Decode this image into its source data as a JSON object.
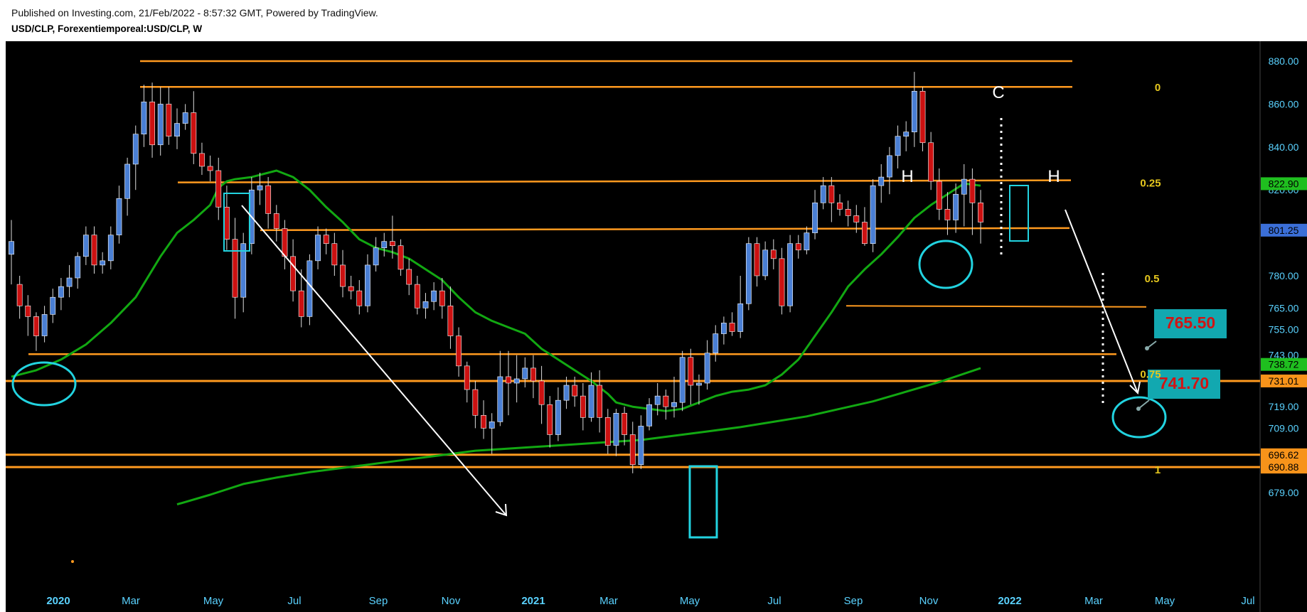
{
  "header": {
    "published": "Published on Investing.com, 21/Feb/2022 - 8:57:32 GMT, Powered by TradingView.",
    "symbol": "USD/CLP, Forexentiemporeal:USD/CLP, W"
  },
  "colors": {
    "background": "#000000",
    "up_candle": "#4a7fd4",
    "down_candle": "#cc1111",
    "levels": "#ff9a1f",
    "ma_line": "#12a812",
    "annotation": "#22d3e0",
    "fib_text": "#e6c81e",
    "axis_text": "#5ad2ff"
  },
  "chart_data": {
    "type": "candlestick",
    "timeframe": "W",
    "ylim": [
      675,
      888
    ],
    "y_ticks": [
      "880.00",
      "860.00",
      "840.00",
      "820.00",
      "801.25",
      "780.00",
      "765.00",
      "755.00",
      "743.00",
      "738.72",
      "731.01",
      "719.00",
      "709.00",
      "696.62",
      "690.88",
      "679.00"
    ],
    "x_ticks": [
      "2020",
      "Mar",
      "May",
      "Jul",
      "Sep",
      "Nov",
      "2021",
      "Mar",
      "May",
      "Jul",
      "Sep",
      "Nov",
      "2022",
      "Mar",
      "May",
      "Jul"
    ],
    "price_badges": [
      {
        "value": "822.90",
        "color": "#1fbf1f"
      },
      {
        "value": "801.25",
        "color": "#3b6fd8"
      },
      {
        "value": "738.72",
        "color": "#1fbf1f"
      },
      {
        "value": "731.01",
        "color": "#f7931a"
      },
      {
        "value": "696.62",
        "color": "#f7931a"
      },
      {
        "value": "690.88",
        "color": "#f7931a"
      }
    ],
    "horizontal_levels": [
      880,
      868,
      823.5,
      801.25,
      743.5,
      731.01,
      696.62,
      690.88
    ],
    "fibonacci": [
      {
        "label": "0",
        "value": 868
      },
      {
        "label": "0.25",
        "value": 823.5
      },
      {
        "label": "0.5",
        "value": 779
      },
      {
        "label": "0.75",
        "value": 734.5
      },
      {
        "label": "1",
        "value": 690
      }
    ],
    "targets": [
      "765.50",
      "741.70"
    ],
    "pattern_labels": [
      "H",
      "C",
      "H"
    ],
    "candles": [
      [
        0,
        790,
        796,
        776,
        806
      ],
      [
        1,
        776,
        766,
        760,
        780
      ],
      [
        2,
        766,
        761,
        752,
        771
      ],
      [
        3,
        761,
        752,
        745,
        763
      ],
      [
        4,
        752,
        762,
        749,
        766
      ],
      [
        5,
        762,
        770,
        758,
        774
      ],
      [
        6,
        770,
        775,
        764,
        779
      ],
      [
        7,
        775,
        779,
        770,
        785
      ],
      [
        8,
        779,
        789,
        774,
        791
      ],
      [
        9,
        789,
        799,
        785,
        803
      ],
      [
        10,
        799,
        785,
        781,
        803
      ],
      [
        11,
        785,
        787,
        781,
        791
      ],
      [
        12,
        787,
        799,
        783,
        803
      ],
      [
        13,
        799,
        816,
        795,
        822
      ],
      [
        14,
        816,
        832,
        808,
        835
      ],
      [
        15,
        832,
        846,
        820,
        850
      ],
      [
        16,
        846,
        861,
        840,
        869
      ],
      [
        17,
        861,
        841,
        835,
        870
      ],
      [
        18,
        841,
        860,
        836,
        868
      ],
      [
        19,
        860,
        845,
        841,
        868
      ],
      [
        20,
        845,
        851,
        839,
        858
      ],
      [
        21,
        851,
        856,
        848,
        860
      ],
      [
        22,
        856,
        837,
        832,
        866
      ],
      [
        23,
        837,
        831,
        827,
        842
      ],
      [
        24,
        831,
        829,
        824,
        836
      ],
      [
        25,
        829,
        812,
        806,
        835
      ],
      [
        26,
        812,
        797,
        792,
        822
      ],
      [
        27,
        797,
        770,
        760,
        807
      ],
      [
        28,
        770,
        795,
        763,
        800
      ],
      [
        29,
        795,
        820,
        790,
        826
      ],
      [
        30,
        820,
        822,
        813,
        828
      ],
      [
        31,
        822,
        809,
        802,
        826
      ],
      [
        32,
        809,
        802,
        796,
        813
      ],
      [
        33,
        802,
        789,
        783,
        806
      ],
      [
        34,
        789,
        773,
        768,
        797
      ],
      [
        35,
        773,
        761,
        756,
        783
      ],
      [
        36,
        761,
        787,
        757,
        790
      ],
      [
        37,
        787,
        799,
        783,
        803
      ],
      [
        38,
        799,
        795,
        790,
        802
      ],
      [
        39,
        795,
        785,
        780,
        800
      ],
      [
        40,
        785,
        775,
        770,
        792
      ],
      [
        41,
        775,
        773,
        769,
        780
      ],
      [
        42,
        773,
        766,
        762,
        778
      ],
      [
        43,
        766,
        785,
        763,
        790
      ],
      [
        44,
        785,
        793,
        782,
        798
      ],
      [
        45,
        793,
        796,
        789,
        800
      ],
      [
        46,
        796,
        794,
        788,
        808
      ],
      [
        47,
        794,
        783,
        780,
        797
      ],
      [
        48,
        783,
        776,
        771,
        788
      ],
      [
        49,
        776,
        765,
        762,
        780
      ],
      [
        50,
        765,
        768,
        760,
        772
      ],
      [
        51,
        768,
        773,
        764,
        777
      ],
      [
        52,
        773,
        766,
        760,
        779
      ],
      [
        53,
        766,
        752,
        746,
        775
      ],
      [
        54,
        752,
        738,
        733,
        756
      ],
      [
        55,
        738,
        727,
        721,
        740
      ],
      [
        56,
        727,
        715,
        709,
        731
      ],
      [
        57,
        715,
        709,
        704,
        722
      ],
      [
        58,
        709,
        712,
        697,
        716
      ],
      [
        59,
        712,
        733,
        710,
        745
      ],
      [
        60,
        733,
        730,
        715,
        745
      ],
      [
        61,
        730,
        732,
        721,
        743
      ],
      [
        62,
        732,
        737,
        728,
        742
      ],
      [
        63,
        737,
        731,
        723,
        743
      ],
      [
        64,
        731,
        720,
        711,
        738
      ],
      [
        65,
        720,
        706,
        700,
        724
      ],
      [
        66,
        706,
        722,
        703,
        728
      ],
      [
        67,
        722,
        729,
        718,
        733
      ],
      [
        68,
        729,
        724,
        719,
        733
      ],
      [
        69,
        724,
        714,
        708,
        730
      ],
      [
        70,
        714,
        729,
        712,
        735
      ],
      [
        71,
        729,
        714,
        707,
        736
      ],
      [
        72,
        714,
        701,
        697,
        718
      ],
      [
        73,
        701,
        716,
        696,
        718
      ],
      [
        74,
        716,
        706,
        701,
        719
      ],
      [
        75,
        706,
        692,
        688,
        712
      ],
      [
        76,
        692,
        710,
        690,
        715
      ],
      [
        77,
        710,
        720,
        708,
        723
      ],
      [
        78,
        720,
        724,
        715,
        730
      ],
      [
        79,
        724,
        719,
        713,
        727
      ],
      [
        80,
        719,
        721,
        714,
        733
      ],
      [
        81,
        721,
        742,
        717,
        745
      ],
      [
        82,
        742,
        729,
        720,
        746
      ],
      [
        83,
        729,
        730,
        720,
        734
      ],
      [
        84,
        730,
        744,
        727,
        750
      ],
      [
        85,
        744,
        753,
        740,
        757
      ],
      [
        86,
        753,
        758,
        748,
        761
      ],
      [
        87,
        758,
        754,
        752,
        763
      ],
      [
        88,
        754,
        767,
        751,
        780
      ],
      [
        89,
        767,
        795,
        764,
        798
      ],
      [
        90,
        795,
        780,
        775,
        798
      ],
      [
        91,
        780,
        792,
        778,
        796
      ],
      [
        92,
        792,
        788,
        783,
        797
      ],
      [
        93,
        788,
        766,
        762,
        793
      ],
      [
        94,
        766,
        795,
        763,
        799
      ],
      [
        95,
        795,
        792,
        788,
        799
      ],
      [
        96,
        792,
        800,
        790,
        803
      ],
      [
        97,
        800,
        814,
        797,
        820
      ],
      [
        98,
        814,
        822,
        811,
        826
      ],
      [
        99,
        822,
        814,
        805,
        826
      ],
      [
        100,
        814,
        811,
        808,
        818
      ],
      [
        101,
        811,
        808,
        803,
        815
      ],
      [
        102,
        808,
        805,
        800,
        813
      ],
      [
        103,
        805,
        795,
        794,
        812
      ],
      [
        104,
        795,
        822,
        791,
        825
      ],
      [
        105,
        822,
        826,
        814,
        832
      ],
      [
        106,
        826,
        836,
        818,
        840
      ],
      [
        107,
        836,
        845,
        830,
        850
      ],
      [
        108,
        845,
        847,
        838,
        852
      ],
      [
        109,
        847,
        866,
        840,
        875
      ],
      [
        110,
        866,
        842,
        838,
        868
      ],
      [
        111,
        842,
        824,
        820,
        847
      ],
      [
        112,
        824,
        811,
        806,
        830
      ],
      [
        113,
        811,
        806,
        799,
        819
      ],
      [
        114,
        806,
        818,
        800,
        823
      ],
      [
        115,
        818,
        825,
        803,
        832
      ],
      [
        116,
        825,
        814,
        799,
        830
      ],
      [
        117,
        814,
        805,
        795,
        820
      ]
    ],
    "ma_short": [
      [
        0,
        733
      ],
      [
        3,
        736
      ],
      [
        6,
        741
      ],
      [
        9,
        748
      ],
      [
        12,
        758
      ],
      [
        15,
        770
      ],
      [
        18,
        789
      ],
      [
        20,
        800
      ],
      [
        22,
        806
      ],
      [
        24,
        813
      ],
      [
        25,
        821
      ],
      [
        26,
        824
      ],
      [
        27,
        825
      ],
      [
        29,
        826
      ],
      [
        30,
        827
      ],
      [
        31,
        828
      ],
      [
        32,
        829
      ],
      [
        34,
        826
      ],
      [
        36,
        820
      ],
      [
        38,
        812
      ],
      [
        40,
        805
      ],
      [
        42,
        797
      ],
      [
        44,
        793
      ],
      [
        46,
        791
      ],
      [
        48,
        788
      ],
      [
        50,
        783
      ],
      [
        52,
        778
      ],
      [
        54,
        770
      ],
      [
        56,
        763
      ],
      [
        58,
        759
      ],
      [
        60,
        756
      ],
      [
        62,
        753
      ],
      [
        64,
        746
      ],
      [
        66,
        741
      ],
      [
        68,
        736
      ],
      [
        70,
        731
      ],
      [
        72,
        725
      ],
      [
        73,
        721
      ],
      [
        75,
        719
      ],
      [
        77,
        718
      ],
      [
        79,
        717
      ],
      [
        81,
        718
      ],
      [
        83,
        721
      ],
      [
        85,
        724
      ],
      [
        87,
        726
      ],
      [
        89,
        727
      ],
      [
        91,
        729
      ],
      [
        93,
        734
      ],
      [
        95,
        741
      ],
      [
        97,
        752
      ],
      [
        99,
        763
      ],
      [
        101,
        775
      ],
      [
        103,
        783
      ],
      [
        105,
        790
      ],
      [
        107,
        798
      ],
      [
        109,
        807
      ],
      [
        111,
        813
      ],
      [
        113,
        818
      ],
      [
        115,
        823
      ],
      [
        117,
        822
      ]
    ],
    "ma_long": [
      [
        20,
        673.5
      ],
      [
        24,
        678
      ],
      [
        28,
        683
      ],
      [
        32,
        686
      ],
      [
        36,
        688.5
      ],
      [
        40,
        690.5
      ],
      [
        44,
        692.5
      ],
      [
        48,
        694.5
      ],
      [
        52,
        696.5
      ],
      [
        56,
        698.5
      ],
      [
        60,
        699.5
      ],
      [
        64,
        700.5
      ],
      [
        68,
        701.5
      ],
      [
        72,
        702.5
      ],
      [
        76,
        703.5
      ],
      [
        80,
        705.5
      ],
      [
        84,
        707.5
      ],
      [
        88,
        709.5
      ],
      [
        92,
        712
      ],
      [
        96,
        714.5
      ],
      [
        100,
        718
      ],
      [
        104,
        721.5
      ],
      [
        108,
        726
      ],
      [
        112,
        730.5
      ],
      [
        117,
        737
      ]
    ]
  }
}
